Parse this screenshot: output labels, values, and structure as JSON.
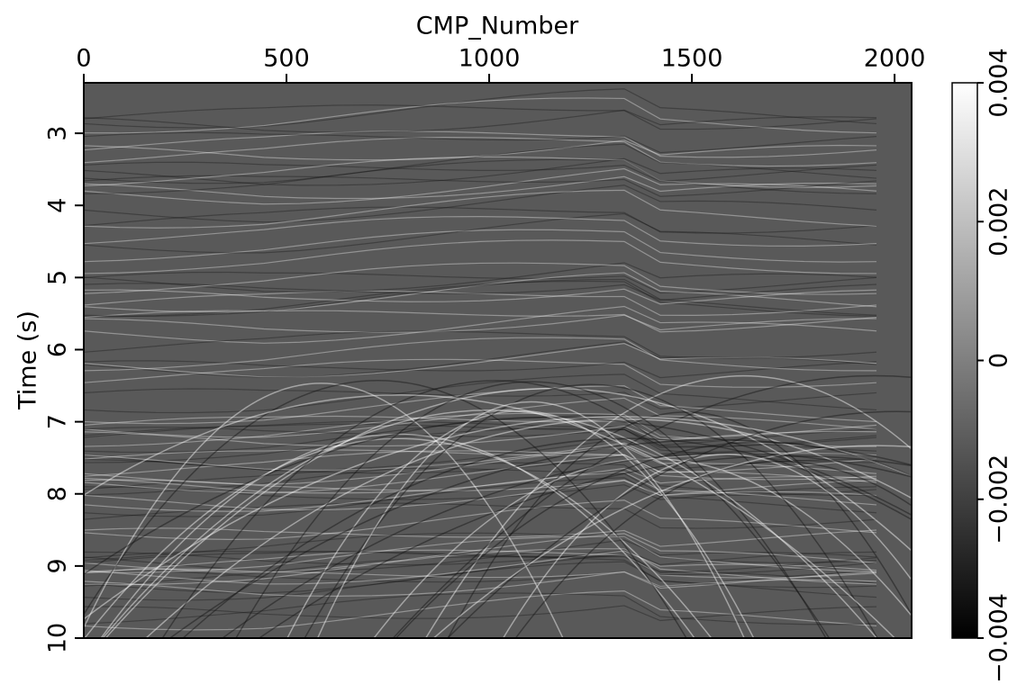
{
  "chart_data": {
    "type": "image",
    "xlabel": "CMP_Number",
    "ylabel": "Time (s)",
    "xlim": [
      0,
      2042
    ],
    "xticks": [
      0,
      500,
      1000,
      1500,
      2000
    ],
    "ylim": [
      2.3,
      10
    ],
    "yticks": [
      3,
      4,
      5,
      6,
      7,
      8,
      9,
      10
    ],
    "clim": [
      -0.004,
      0.004
    ],
    "cticks": [
      {
        "value": -0.004,
        "label": "−0.004"
      },
      {
        "value": -0.002,
        "label": "−0.002"
      },
      0,
      0.002,
      0.004
    ],
    "colormap": [
      "#000000",
      "#ffffff"
    ]
  }
}
